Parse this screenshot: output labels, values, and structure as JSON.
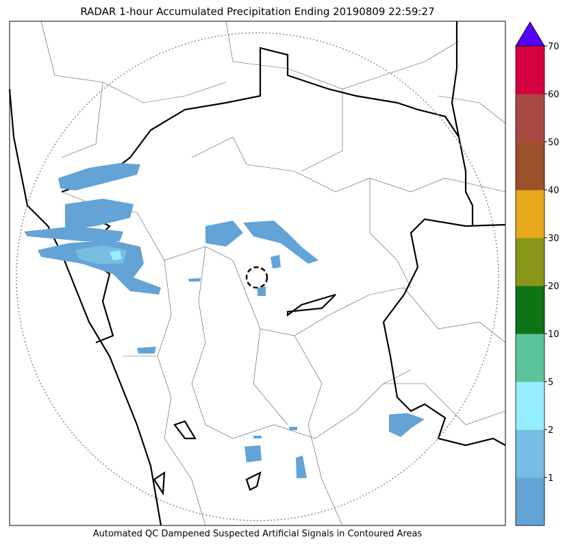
{
  "map": {
    "title": "RADAR 1-hour Accumulated Precipitation Ending 20190809 22:59:27",
    "caption": "Automated QC Dampened Suspected Artificial Signals in Contoured Areas"
  },
  "colorbar": {
    "ticks": [
      1,
      2,
      5,
      10,
      20,
      30,
      40,
      50,
      60,
      70
    ],
    "colors": [
      "#63a3d6",
      "#78bde2",
      "#96eefe",
      "#5cc49a",
      "#0e7416",
      "#8a9619",
      "#e6a81b",
      "#9b4f2b",
      "#a84a43",
      "#d5003f"
    ],
    "extend_color": "#5500ff"
  }
}
